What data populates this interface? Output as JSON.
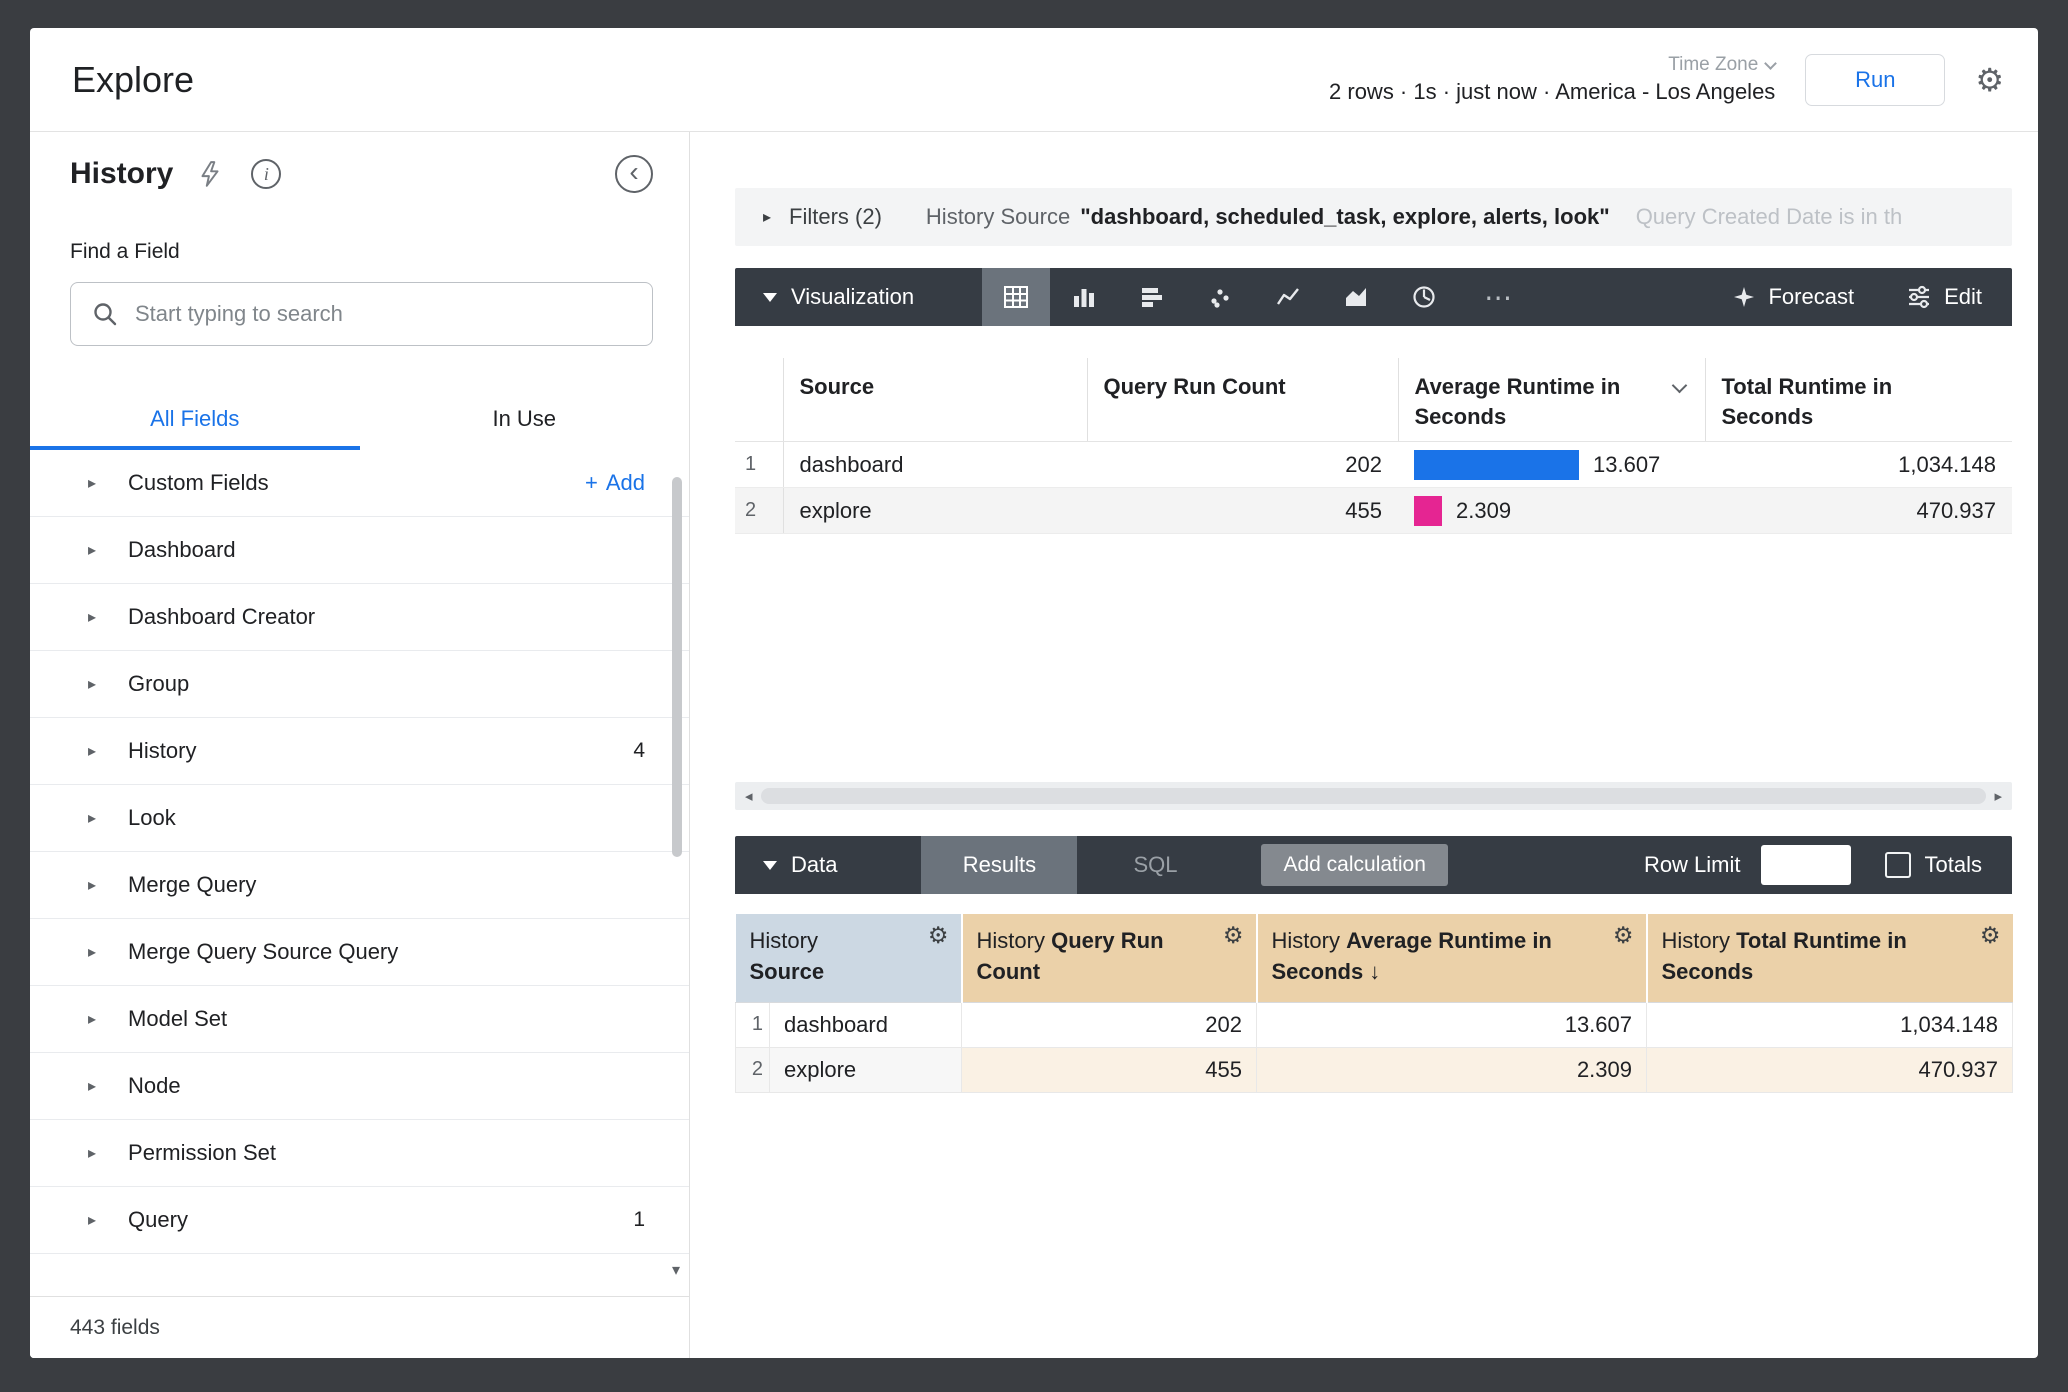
{
  "header": {
    "title": "Explore",
    "time_zone_label": "Time Zone",
    "status_text": "2 rows · 1s · just now · America - Los Angeles",
    "run_button": "Run"
  },
  "sidebar": {
    "panel_title": "History",
    "find_field_label": "Find a Field",
    "search_placeholder": "Start typing to search",
    "tabs": {
      "all_fields": "All Fields",
      "in_use": "In Use"
    },
    "custom_fields": {
      "label": "Custom Fields",
      "add_label": "Add"
    },
    "fields": [
      {
        "label": "Dashboard"
      },
      {
        "label": "Dashboard Creator"
      },
      {
        "label": "Group"
      },
      {
        "label": "History",
        "count": "4"
      },
      {
        "label": "Look"
      },
      {
        "label": "Merge Query"
      },
      {
        "label": "Merge Query Source Query"
      },
      {
        "label": "Model Set"
      },
      {
        "label": "Node"
      },
      {
        "label": "Permission Set"
      },
      {
        "label": "Query",
        "count": "1"
      }
    ],
    "footer": "443 fields"
  },
  "filters_bar": {
    "label": "Filters (2)",
    "filter_source_field": "History Source",
    "filter_source_value": "\"dashboard, scheduled_task, explore, alerts, look\"",
    "filter_date_text": "Query Created Date is in th"
  },
  "viz_toolbar": {
    "label": "Visualization",
    "forecast_label": "Forecast",
    "edit_label": "Edit"
  },
  "viz_table": {
    "columns": [
      {
        "label": "Source"
      },
      {
        "label": "Query Run Count"
      },
      {
        "label": "Average Runtime in Seconds",
        "menu": true
      },
      {
        "label": "Total Runtime in Seconds"
      }
    ],
    "rows": [
      {
        "index": "1",
        "source": "dashboard",
        "query_run_count": "202",
        "average_runtime": "13.607",
        "total_runtime": "1,034.148",
        "bar_color": "#1a73e8"
      },
      {
        "index": "2",
        "source": "explore",
        "query_run_count": "455",
        "average_runtime": "2.309",
        "total_runtime": "470.937",
        "bar_color": "#e52592"
      }
    ]
  },
  "data_section": {
    "label": "Data",
    "results_tab": "Results",
    "sql_tab": "SQL",
    "add_calculation": "Add calculation",
    "row_limit_label": "Row Limit",
    "row_limit_value": "",
    "totals_label": "Totals",
    "headers": [
      {
        "view": "History",
        "field": "Source",
        "kind": "dimension"
      },
      {
        "view": "History",
        "field": "Query Run Count",
        "kind": "measure"
      },
      {
        "view": "History",
        "field": "Average Runtime in Seconds",
        "kind": "measure",
        "sorted": true
      },
      {
        "view": "History",
        "field": "Total Runtime in Seconds",
        "kind": "measure"
      }
    ],
    "rows": [
      {
        "index": "1",
        "cells": [
          "dashboard",
          "202",
          "13.607",
          "1,034.148"
        ]
      },
      {
        "index": "2",
        "cells": [
          "explore",
          "455",
          "2.309",
          "470.937"
        ]
      }
    ]
  },
  "icons": {
    "gear": "⚙",
    "caret_right": "▸",
    "arrow_down": "↓",
    "more_horizontal": "⋯",
    "plus": "+",
    "chevron_left": "‹",
    "info": "i",
    "scroll_down_arrow": "▾",
    "scroll_left_arrow": "◂",
    "scroll_right_arrow": "▸"
  },
  "colors": {
    "accent_blue": "#1a73e8",
    "bar_blue": "#1a73e8",
    "bar_pink": "#e52592",
    "toolbar_dark": "#363c44",
    "dimension_header_bg": "#ccd8e3",
    "measure_header_bg": "#ebd1a9"
  }
}
